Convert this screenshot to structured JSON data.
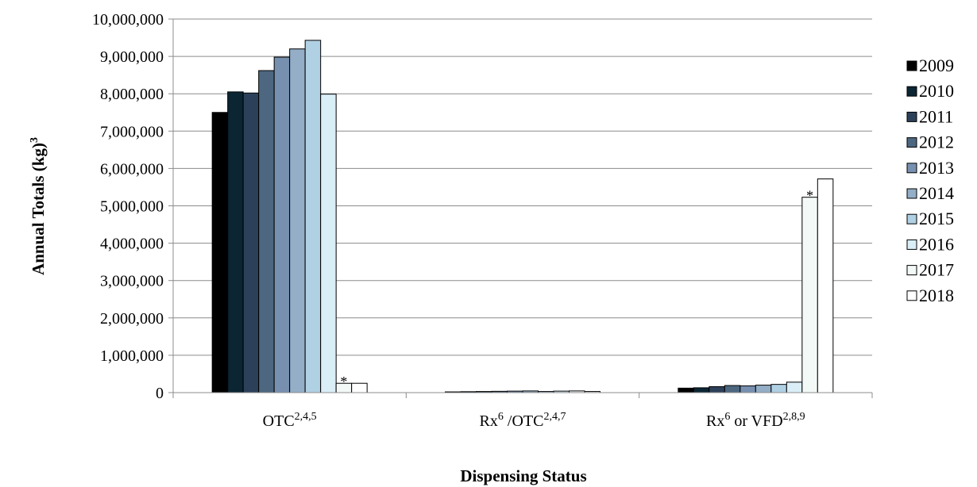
{
  "chart_data": {
    "type": "bar",
    "ylabel": "Annual Totals (kg)",
    "ylabel_sup": "3",
    "xlabel": "Dispensing Status",
    "ylim": [
      0,
      10000000
    ],
    "yticks": [
      0,
      1000000,
      2000000,
      3000000,
      4000000,
      5000000,
      6000000,
      7000000,
      8000000,
      9000000,
      10000000
    ],
    "ytick_labels": [
      "0",
      "1,000,000",
      "2,000,000",
      "3,000,000",
      "4,000,000",
      "5,000,000",
      "6,000,000",
      "7,000,000",
      "8,000,000",
      "9,000,000",
      "10,000,000"
    ],
    "grid": true,
    "legend_position": "right",
    "categories": [
      {
        "parts": [
          {
            "text": "OTC",
            "sup": "2,4,5"
          }
        ]
      },
      {
        "parts": [
          {
            "text": "Rx",
            "sup": "6"
          },
          {
            "text": " /OTC",
            "sup": "2,4,7"
          }
        ]
      },
      {
        "parts": [
          {
            "text": "Rx",
            "sup": "6"
          },
          {
            "text": " or VFD",
            "sup": "2,8,9"
          }
        ]
      }
    ],
    "series": [
      {
        "name": "2009",
        "color": "#000000",
        "values": [
          7500000,
          20000,
          120000
        ]
      },
      {
        "name": "2010",
        "color": "#0b2533",
        "values": [
          8050000,
          25000,
          130000
        ]
      },
      {
        "name": "2011",
        "color": "#2c4159",
        "values": [
          8020000,
          30000,
          160000
        ]
      },
      {
        "name": "2012",
        "color": "#4d6780",
        "values": [
          8620000,
          35000,
          190000
        ]
      },
      {
        "name": "2013",
        "color": "#7890b0",
        "values": [
          8980000,
          40000,
          180000
        ]
      },
      {
        "name": "2014",
        "color": "#93aec6",
        "values": [
          9200000,
          45000,
          200000
        ]
      },
      {
        "name": "2015",
        "color": "#b0d0e3",
        "values": [
          9430000,
          30000,
          220000
        ]
      },
      {
        "name": "2016",
        "color": "#daeef8",
        "values": [
          7990000,
          40000,
          280000
        ]
      },
      {
        "name": "2017",
        "color": "#f3f9f6",
        "values": [
          250000,
          45000,
          5230000
        ]
      },
      {
        "name": "2018",
        "color": "#ffffff",
        "values": [
          250000,
          30000,
          5720000
        ]
      }
    ],
    "annotations": [
      {
        "text": "*",
        "category_index": 0,
        "series_index": 8
      },
      {
        "text": "*",
        "category_index": 2,
        "series_index": 8
      }
    ]
  }
}
